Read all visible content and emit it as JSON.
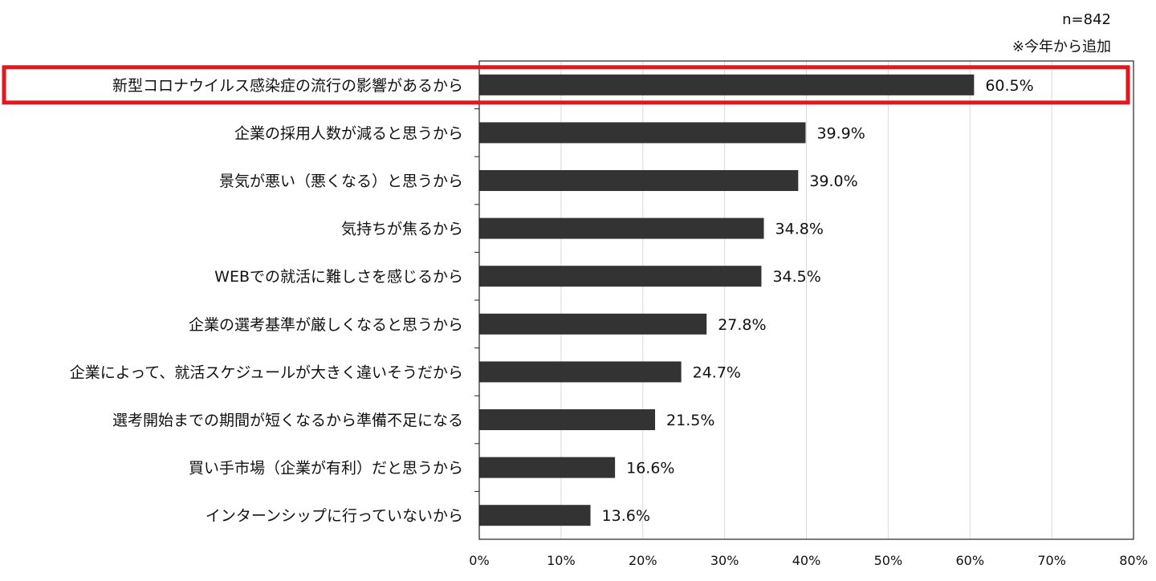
{
  "notes": {
    "sample_size": "n=842",
    "addition": "※今年から追加"
  },
  "colors": {
    "bar": "#333333",
    "grid": "#d9d9d9",
    "highlight": "#e8151b"
  },
  "chart_data": {
    "type": "bar",
    "orientation": "horizontal",
    "categories": [
      "新型コロナウイルス感染症の流行の影響があるから",
      "企業の採用人数が減ると思うから",
      "景気が悪い（悪くなる）と思うから",
      "気持ちが焦るから",
      "WEBでの就活に難しさを感じるから",
      "企業の選考基準が厳しくなると思うから",
      "企業によって、就活スケジュールが大きく違いそうだから",
      "選考開始までの期間が短くなるから準備不足になる",
      "買い手市場（企業が有利）だと思うから",
      "インターンシップに行っていないから"
    ],
    "values": [
      60.5,
      39.9,
      39.0,
      34.8,
      34.5,
      27.8,
      24.7,
      21.5,
      16.6,
      13.6
    ],
    "value_labels": [
      "60.5%",
      "39.9%",
      "39.0%",
      "34.8%",
      "34.5%",
      "27.8%",
      "24.7%",
      "21.5%",
      "16.6%",
      "13.6%"
    ],
    "xlim": [
      0,
      80
    ],
    "xticks": [
      0,
      10,
      20,
      30,
      40,
      50,
      60,
      70,
      80
    ],
    "xtick_labels": [
      "0%",
      "10%",
      "20%",
      "30%",
      "40%",
      "50%",
      "60%",
      "70%",
      "80%"
    ],
    "grid": true,
    "highlighted_category_index": 0
  }
}
